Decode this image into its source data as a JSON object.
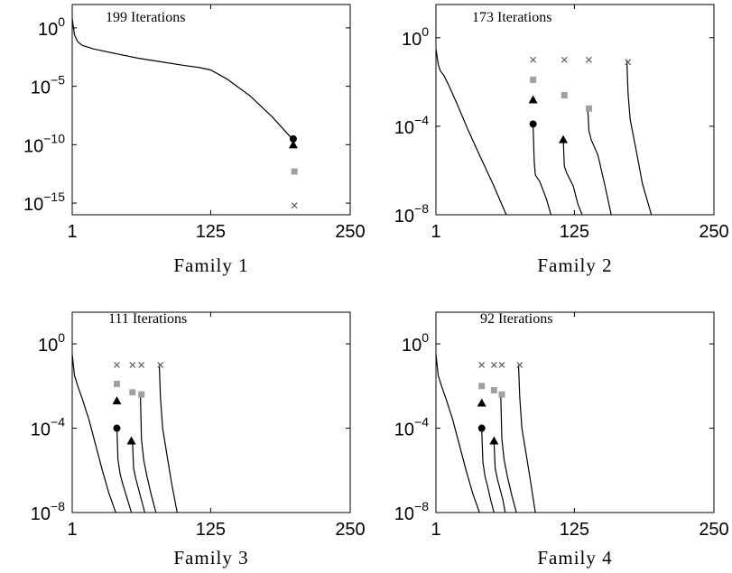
{
  "chart_data": [
    {
      "type": "line",
      "xlabel": "Family 1",
      "annotation": "199 Iterations",
      "xlim": [
        1,
        250
      ],
      "ylim_log10": [
        -16,
        2
      ],
      "y_scale": "log",
      "x_ticks": [
        "1",
        "125",
        "250"
      ],
      "y_ticks": [
        {
          "base": "10",
          "exp": "0",
          "value": 0
        },
        {
          "base": "10",
          "exp": "−5",
          "value": -5
        },
        {
          "base": "10",
          "exp": "−10",
          "value": -10
        },
        {
          "base": "10",
          "exp": "−15",
          "value": -15
        }
      ],
      "lines": [
        {
          "x": [
            1,
            3,
            6,
            10,
            20,
            40,
            60,
            80,
            100,
            115,
            125,
            140,
            160,
            180,
            199
          ],
          "y_log10": [
            0.8,
            -0.6,
            -1.2,
            -1.5,
            -1.8,
            -2.2,
            -2.6,
            -2.9,
            -3.2,
            -3.4,
            -3.6,
            -4.4,
            -5.8,
            -7.6,
            -9.6
          ]
        }
      ],
      "markers": [
        {
          "shape": "circle",
          "color": "#000000",
          "x": 199,
          "y_log10": -9.5
        },
        {
          "shape": "triangle",
          "color": "#000000",
          "x": 199,
          "y_log10": -10.0
        },
        {
          "shape": "square",
          "color": "#a0a0a0",
          "x": 200,
          "y_log10": -12.3
        },
        {
          "shape": "x",
          "color": "#606060",
          "x": 200,
          "y_log10": -15.2
        }
      ]
    },
    {
      "type": "line",
      "xlabel": "Family 2",
      "annotation": "173 Iterations",
      "xlim": [
        1,
        250
      ],
      "ylim_log10": [
        -8,
        1.5
      ],
      "y_scale": "log",
      "x_ticks": [
        "1",
        "125",
        "250"
      ],
      "y_ticks": [
        {
          "base": "10",
          "exp": "0",
          "value": 0
        },
        {
          "base": "10",
          "exp": "−4",
          "value": -4
        },
        {
          "base": "10",
          "exp": "−8",
          "value": -8
        }
      ],
      "lines": [
        {
          "x": [
            1,
            3,
            5,
            8,
            12,
            20,
            30,
            40,
            52,
            64
          ],
          "y_log10": [
            -0.5,
            -1.2,
            -1.5,
            -1.7,
            -2.1,
            -3.0,
            -4.2,
            -5.3,
            -6.6,
            -8.0
          ]
        },
        {
          "x": [
            88,
            89,
            90,
            94,
            100,
            104
          ],
          "y_log10": [
            -3.9,
            -5.6,
            -6.2,
            -6.5,
            -7.3,
            -8.0
          ]
        },
        {
          "x": [
            115,
            116,
            118,
            124,
            128,
            132
          ],
          "y_log10": [
            -4.5,
            -5.8,
            -6.1,
            -6.7,
            -7.5,
            -8.0
          ]
        },
        {
          "x": [
            137,
            138,
            140,
            146,
            152,
            158
          ],
          "y_log10": [
            -3.2,
            -4.2,
            -4.6,
            -5.3,
            -6.6,
            -8.0
          ]
        },
        {
          "x": [
            172,
            173,
            175,
            180,
            186,
            194
          ],
          "y_log10": [
            -1.0,
            -2.5,
            -3.7,
            -5.0,
            -6.6,
            -8.0
          ]
        }
      ],
      "markers": [
        {
          "shape": "x",
          "color": "#606060",
          "x": 88,
          "y_log10": -1.0
        },
        {
          "shape": "x",
          "color": "#606060",
          "x": 116,
          "y_log10": -1.0
        },
        {
          "shape": "x",
          "color": "#606060",
          "x": 138,
          "y_log10": -1.0
        },
        {
          "shape": "x",
          "color": "#606060",
          "x": 173,
          "y_log10": -1.1
        },
        {
          "shape": "square",
          "color": "#a0a0a0",
          "x": 88,
          "y_log10": -1.9
        },
        {
          "shape": "square",
          "color": "#a0a0a0",
          "x": 116,
          "y_log10": -2.6
        },
        {
          "shape": "square",
          "color": "#a0a0a0",
          "x": 138,
          "y_log10": -3.2
        },
        {
          "shape": "triangle",
          "color": "#000000",
          "x": 88,
          "y_log10": -2.8
        },
        {
          "shape": "triangle",
          "color": "#000000",
          "x": 115,
          "y_log10": -4.6
        },
        {
          "shape": "circle",
          "color": "#000000",
          "x": 88,
          "y_log10": -3.9
        }
      ]
    },
    {
      "type": "line",
      "xlabel": "Family 3",
      "annotation": "111 Iterations",
      "xlim": [
        1,
        250
      ],
      "ylim_log10": [
        -8,
        1.5
      ],
      "y_scale": "log",
      "x_ticks": [
        "1",
        "125",
        "250"
      ],
      "y_ticks": [
        {
          "base": "10",
          "exp": "0",
          "value": 0
        },
        {
          "base": "10",
          "exp": "−4",
          "value": -4
        },
        {
          "base": "10",
          "exp": "−8",
          "value": -8
        }
      ],
      "lines": [
        {
          "x": [
            1,
            3,
            6,
            10,
            16,
            22,
            28,
            34,
            40
          ],
          "y_log10": [
            -0.5,
            -1.5,
            -2.0,
            -2.6,
            -3.6,
            -4.8,
            -6.0,
            -7.1,
            -8.0
          ]
        },
        {
          "x": [
            41,
            42,
            44,
            46,
            50,
            54
          ],
          "y_log10": [
            -4.0,
            -5.5,
            -6.2,
            -6.6,
            -7.3,
            -8.0
          ]
        },
        {
          "x": [
            55,
            56,
            58,
            60,
            63,
            66
          ],
          "y_log10": [
            -4.6,
            -5.9,
            -6.4,
            -6.8,
            -7.4,
            -8.0
          ]
        },
        {
          "x": [
            62,
            63,
            65,
            68,
            72,
            76
          ],
          "y_log10": [
            -2.3,
            -4.5,
            -5.5,
            -6.3,
            -7.2,
            -8.0
          ]
        },
        {
          "x": [
            79,
            80,
            82,
            86,
            90,
            95
          ],
          "y_log10": [
            -1.0,
            -2.5,
            -4.0,
            -5.3,
            -6.6,
            -8.0
          ]
        }
      ],
      "markers": [
        {
          "shape": "x",
          "color": "#606060",
          "x": 41,
          "y_log10": -1.0
        },
        {
          "shape": "x",
          "color": "#606060",
          "x": 55,
          "y_log10": -1.0
        },
        {
          "shape": "x",
          "color": "#606060",
          "x": 63,
          "y_log10": -1.0
        },
        {
          "shape": "x",
          "color": "#606060",
          "x": 80,
          "y_log10": -1.0
        },
        {
          "shape": "square",
          "color": "#a0a0a0",
          "x": 41,
          "y_log10": -1.9
        },
        {
          "shape": "square",
          "color": "#a0a0a0",
          "x": 55,
          "y_log10": -2.3
        },
        {
          "shape": "square",
          "color": "#a0a0a0",
          "x": 63,
          "y_log10": -2.4
        },
        {
          "shape": "triangle",
          "color": "#000000",
          "x": 41,
          "y_log10": -2.7
        },
        {
          "shape": "triangle",
          "color": "#000000",
          "x": 54,
          "y_log10": -4.6
        },
        {
          "shape": "circle",
          "color": "#000000",
          "x": 41,
          "y_log10": -4.0
        }
      ]
    },
    {
      "type": "line",
      "xlabel": "Family 4",
      "annotation": "92 Iterations",
      "xlim": [
        1,
        250
      ],
      "ylim_log10": [
        -8,
        1.5
      ],
      "y_scale": "log",
      "x_ticks": [
        "1",
        "125",
        "250"
      ],
      "y_ticks": [
        {
          "base": "10",
          "exp": "0",
          "value": 0
        },
        {
          "base": "10",
          "exp": "−4",
          "value": -4
        },
        {
          "base": "10",
          "exp": "−8",
          "value": -8
        }
      ],
      "lines": [
        {
          "x": [
            1,
            3,
            6,
            10,
            16,
            22,
            28,
            34,
            40
          ],
          "y_log10": [
            -0.5,
            -1.5,
            -2.0,
            -2.6,
            -3.6,
            -4.8,
            -6.0,
            -7.1,
            -8.0
          ]
        },
        {
          "x": [
            42,
            43,
            45,
            47,
            50,
            53
          ],
          "y_log10": [
            -4.0,
            -5.6,
            -6.3,
            -6.7,
            -7.4,
            -8.0
          ]
        },
        {
          "x": [
            53,
            54,
            56,
            58,
            61,
            63
          ],
          "y_log10": [
            -4.6,
            -5.9,
            -6.4,
            -6.8,
            -7.4,
            -8.0
          ]
        },
        {
          "x": [
            59,
            60,
            62,
            65,
            69,
            73
          ],
          "y_log10": [
            -2.3,
            -4.5,
            -5.5,
            -6.3,
            -7.2,
            -8.0
          ]
        },
        {
          "x": [
            75,
            76,
            78,
            82,
            86,
            90
          ],
          "y_log10": [
            -1.0,
            -2.5,
            -4.0,
            -5.3,
            -6.6,
            -8.0
          ]
        }
      ],
      "markers": [
        {
          "shape": "x",
          "color": "#606060",
          "x": 42,
          "y_log10": -1.0
        },
        {
          "shape": "x",
          "color": "#606060",
          "x": 53,
          "y_log10": -1.0
        },
        {
          "shape": "x",
          "color": "#606060",
          "x": 60,
          "y_log10": -1.0
        },
        {
          "shape": "x",
          "color": "#606060",
          "x": 76,
          "y_log10": -1.0
        },
        {
          "shape": "square",
          "color": "#a0a0a0",
          "x": 42,
          "y_log10": -2.0
        },
        {
          "shape": "square",
          "color": "#a0a0a0",
          "x": 53,
          "y_log10": -2.2
        },
        {
          "shape": "square",
          "color": "#a0a0a0",
          "x": 60,
          "y_log10": -2.4
        },
        {
          "shape": "triangle",
          "color": "#000000",
          "x": 42,
          "y_log10": -2.8
        },
        {
          "shape": "triangle",
          "color": "#000000",
          "x": 53,
          "y_log10": -4.6
        },
        {
          "shape": "circle",
          "color": "#000000",
          "x": 42,
          "y_log10": -4.0
        }
      ]
    }
  ]
}
